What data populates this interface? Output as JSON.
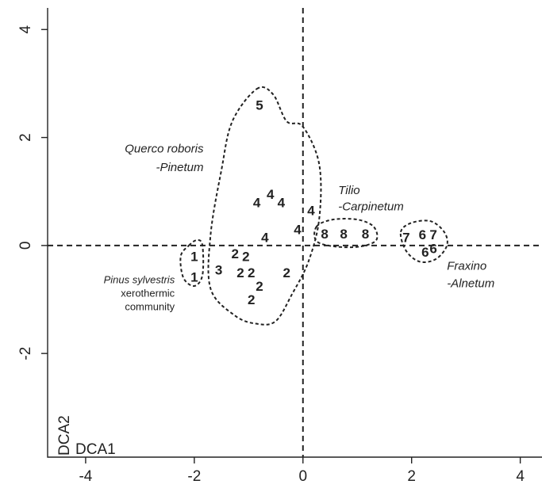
{
  "chart_data": {
    "type": "scatter",
    "title": "",
    "xlabel": "DCA1",
    "ylabel": "DCA2",
    "xlim": [
      -4.7,
      4.4
    ],
    "ylim": [
      -3.92,
      4.4
    ],
    "x_ticks": [
      -4,
      -2,
      0,
      2,
      4
    ],
    "y_ticks": [
      -2,
      0,
      2,
      4
    ],
    "x_tick_labels": [
      "-4",
      "-2",
      "0",
      "2",
      "4"
    ],
    "y_tick_labels": [
      "-2",
      "0",
      "2",
      "4"
    ],
    "reference_lines": {
      "x": 0,
      "y": 0,
      "style": "dashed"
    },
    "points": [
      {
        "x": -0.8,
        "y": 2.6,
        "label": "5"
      },
      {
        "x": -0.85,
        "y": 0.8,
        "label": "4"
      },
      {
        "x": -0.6,
        "y": 0.95,
        "label": "4"
      },
      {
        "x": -0.4,
        "y": 0.8,
        "label": "4"
      },
      {
        "x": -0.1,
        "y": 0.3,
        "label": "4"
      },
      {
        "x": 0.15,
        "y": 0.65,
        "label": "4"
      },
      {
        "x": -0.7,
        "y": 0.15,
        "label": "4"
      },
      {
        "x": 0.4,
        "y": 0.22,
        "label": "8"
      },
      {
        "x": 0.75,
        "y": 0.22,
        "label": "8"
      },
      {
        "x": 1.15,
        "y": 0.22,
        "label": "8"
      },
      {
        "x": 1.9,
        "y": 0.15,
        "label": "7"
      },
      {
        "x": 2.2,
        "y": 0.2,
        "label": "6"
      },
      {
        "x": 2.4,
        "y": 0.2,
        "label": "7"
      },
      {
        "x": 2.25,
        "y": -0.12,
        "label": "6"
      },
      {
        "x": 2.4,
        "y": -0.05,
        "label": "6"
      },
      {
        "x": -2.0,
        "y": -0.2,
        "label": "1"
      },
      {
        "x": -2.0,
        "y": -0.58,
        "label": "1"
      },
      {
        "x": -1.55,
        "y": -0.45,
        "label": "3"
      },
      {
        "x": -1.25,
        "y": -0.15,
        "label": "2"
      },
      {
        "x": -1.05,
        "y": -0.2,
        "label": "2"
      },
      {
        "x": -1.15,
        "y": -0.5,
        "label": "2"
      },
      {
        "x": -0.95,
        "y": -0.5,
        "label": "2"
      },
      {
        "x": -0.8,
        "y": -0.75,
        "label": "2"
      },
      {
        "x": -0.95,
        "y": -1.0,
        "label": "2"
      },
      {
        "x": -0.3,
        "y": -0.5,
        "label": "2"
      }
    ],
    "groups": [
      {
        "name": "Querco roboris\n-Pinetum",
        "hull": [
          [
            -0.85,
            2.9
          ],
          [
            -0.55,
            2.8
          ],
          [
            -0.3,
            2.3
          ],
          [
            0.0,
            2.2
          ],
          [
            0.3,
            1.5
          ],
          [
            0.3,
            0.5
          ],
          [
            0.1,
            -0.3
          ],
          [
            -0.2,
            -0.9
          ],
          [
            -0.5,
            -1.4
          ],
          [
            -0.85,
            -1.45
          ],
          [
            -1.25,
            -1.3
          ],
          [
            -1.7,
            -0.8
          ],
          [
            -1.7,
            0.2
          ],
          [
            -1.5,
            1.4
          ],
          [
            -1.3,
            2.3
          ]
        ]
      },
      {
        "name": "Tilio\n-Carpinetum",
        "hull": [
          [
            0.25,
            0.35
          ],
          [
            0.55,
            0.48
          ],
          [
            1.0,
            0.48
          ],
          [
            1.3,
            0.35
          ],
          [
            1.35,
            0.1
          ],
          [
            1.05,
            -0.02
          ],
          [
            0.6,
            -0.02
          ],
          [
            0.25,
            0.08
          ]
        ]
      },
      {
        "name": "Fraxino\n-Alnetum",
        "hull": [
          [
            1.8,
            0.25
          ],
          [
            2.0,
            0.42
          ],
          [
            2.35,
            0.45
          ],
          [
            2.6,
            0.25
          ],
          [
            2.65,
            0.0
          ],
          [
            2.45,
            -0.25
          ],
          [
            2.15,
            -0.3
          ],
          [
            1.9,
            -0.1
          ]
        ]
      },
      {
        "name": "Pinus sylvestris\nxerothermic\ncommunity",
        "hull": [
          [
            -2.1,
            0.0
          ],
          [
            -1.95,
            0.1
          ],
          [
            -1.85,
            0.0
          ],
          [
            -1.85,
            -0.55
          ],
          [
            -2.0,
            -0.75
          ],
          [
            -2.2,
            -0.6
          ],
          [
            -2.25,
            -0.2
          ]
        ]
      }
    ],
    "annotations": [
      {
        "text": "Querco roboris",
        "x": -1.83,
        "y": 1.72,
        "style": "italic"
      },
      {
        "text": "-Pinetum",
        "x": -1.83,
        "y": 1.38,
        "style": "italic"
      },
      {
        "text": "Tilio",
        "x": 0.65,
        "y": 0.95,
        "style": "italic"
      },
      {
        "text": "-Carpinetum",
        "x": 0.65,
        "y": 0.65,
        "style": "italic"
      },
      {
        "text": "Fraxino",
        "x": 2.65,
        "y": -0.45,
        "style": "italic"
      },
      {
        "text": "-Alnetum",
        "x": 2.65,
        "y": -0.77,
        "style": "italic"
      },
      {
        "text": "Pinus sylvestris",
        "x": -2.36,
        "y": -0.7,
        "style": "small-italic"
      },
      {
        "text": "xerothermic",
        "x": -2.36,
        "y": -0.95,
        "style": "plain"
      },
      {
        "text": "community",
        "x": -2.36,
        "y": -1.2,
        "style": "plain"
      }
    ],
    "grid": false,
    "legend": "none"
  }
}
